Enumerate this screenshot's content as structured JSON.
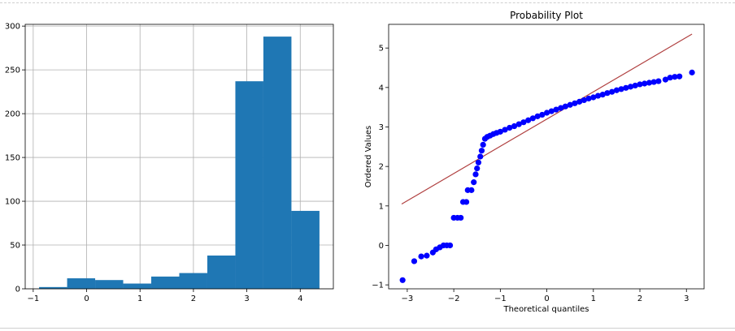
{
  "chart_data": [
    {
      "type": "bar",
      "title": "",
      "xlabel": "",
      "ylabel": "",
      "grid": true,
      "bar_color": "#1f77b4",
      "bins": [
        {
          "x0": -0.89,
          "x1": -0.365,
          "count": 2
        },
        {
          "x0": -0.365,
          "x1": 0.16,
          "count": 12
        },
        {
          "x0": 0.16,
          "x1": 0.685,
          "count": 10
        },
        {
          "x0": 0.685,
          "x1": 1.21,
          "count": 6
        },
        {
          "x0": 1.21,
          "x1": 1.735,
          "count": 14
        },
        {
          "x0": 1.735,
          "x1": 2.26,
          "count": 18
        },
        {
          "x0": 2.26,
          "x1": 2.785,
          "count": 38
        },
        {
          "x0": 2.785,
          "x1": 3.31,
          "count": 237
        },
        {
          "x0": 3.31,
          "x1": 3.835,
          "count": 288
        },
        {
          "x0": 3.835,
          "x1": 4.36,
          "count": 89
        }
      ],
      "xlim": [
        -1.15,
        4.62
      ],
      "ylim": [
        0,
        302
      ],
      "xticks": [
        -1,
        0,
        1,
        2,
        3,
        4
      ],
      "yticks": [
        0,
        50,
        100,
        150,
        200,
        250,
        300
      ]
    },
    {
      "type": "scatter",
      "title": "Probability Plot",
      "xlabel": "Theoretical quantiles",
      "ylabel": "Ordered Values",
      "grid": false,
      "point_color": "#0000ff",
      "line_color": "#b04040",
      "xlim": [
        -3.4,
        3.38
      ],
      "ylim": [
        -1.1,
        5.6
      ],
      "xticks": [
        -3,
        -2,
        -1,
        0,
        1,
        2,
        3
      ],
      "yticks": [
        -1,
        0,
        1,
        2,
        3,
        4,
        5
      ],
      "fit_line": {
        "slope": 0.69,
        "intercept": 3.2,
        "x_range": [
          -3.12,
          3.12
        ]
      },
      "points": [
        [
          -3.1,
          -0.88
        ],
        [
          -2.85,
          -0.4
        ],
        [
          -2.7,
          -0.28
        ],
        [
          -2.58,
          -0.26
        ],
        [
          -2.45,
          -0.18
        ],
        [
          -2.38,
          -0.1
        ],
        [
          -2.3,
          -0.05
        ],
        [
          -2.22,
          0.0
        ],
        [
          -2.15,
          0.0
        ],
        [
          -2.08,
          0.0
        ],
        [
          -2.0,
          0.7
        ],
        [
          -1.92,
          0.7
        ],
        [
          -1.85,
          0.7
        ],
        [
          -1.8,
          1.1
        ],
        [
          -1.73,
          1.1
        ],
        [
          -1.7,
          1.4
        ],
        [
          -1.62,
          1.4
        ],
        [
          -1.57,
          1.6
        ],
        [
          -1.53,
          1.8
        ],
        [
          -1.5,
          1.95
        ],
        [
          -1.47,
          2.1
        ],
        [
          -1.43,
          2.25
        ],
        [
          -1.4,
          2.4
        ],
        [
          -1.37,
          2.55
        ],
        [
          -1.33,
          2.7
        ],
        [
          -1.28,
          2.75
        ],
        [
          -1.22,
          2.78
        ],
        [
          -1.15,
          2.82
        ],
        [
          -1.08,
          2.85
        ],
        [
          -1.0,
          2.88
        ],
        [
          -0.9,
          2.93
        ],
        [
          -0.8,
          2.98
        ],
        [
          -0.7,
          3.02
        ],
        [
          -0.6,
          3.07
        ],
        [
          -0.5,
          3.12
        ],
        [
          -0.4,
          3.17
        ],
        [
          -0.3,
          3.22
        ],
        [
          -0.2,
          3.27
        ],
        [
          -0.1,
          3.31
        ],
        [
          0.0,
          3.36
        ],
        [
          0.1,
          3.4
        ],
        [
          0.2,
          3.44
        ],
        [
          0.3,
          3.48
        ],
        [
          0.4,
          3.52
        ],
        [
          0.5,
          3.56
        ],
        [
          0.6,
          3.6
        ],
        [
          0.7,
          3.64
        ],
        [
          0.8,
          3.68
        ],
        [
          0.9,
          3.72
        ],
        [
          1.0,
          3.75
        ],
        [
          1.1,
          3.79
        ],
        [
          1.2,
          3.82
        ],
        [
          1.3,
          3.86
        ],
        [
          1.4,
          3.89
        ],
        [
          1.5,
          3.93
        ],
        [
          1.6,
          3.96
        ],
        [
          1.7,
          3.99
        ],
        [
          1.8,
          4.02
        ],
        [
          1.9,
          4.05
        ],
        [
          2.0,
          4.08
        ],
        [
          2.1,
          4.1
        ],
        [
          2.2,
          4.12
        ],
        [
          2.3,
          4.14
        ],
        [
          2.4,
          4.16
        ],
        [
          2.55,
          4.2
        ],
        [
          2.65,
          4.25
        ],
        [
          2.75,
          4.27
        ],
        [
          2.85,
          4.28
        ],
        [
          3.12,
          4.38
        ]
      ]
    }
  ]
}
